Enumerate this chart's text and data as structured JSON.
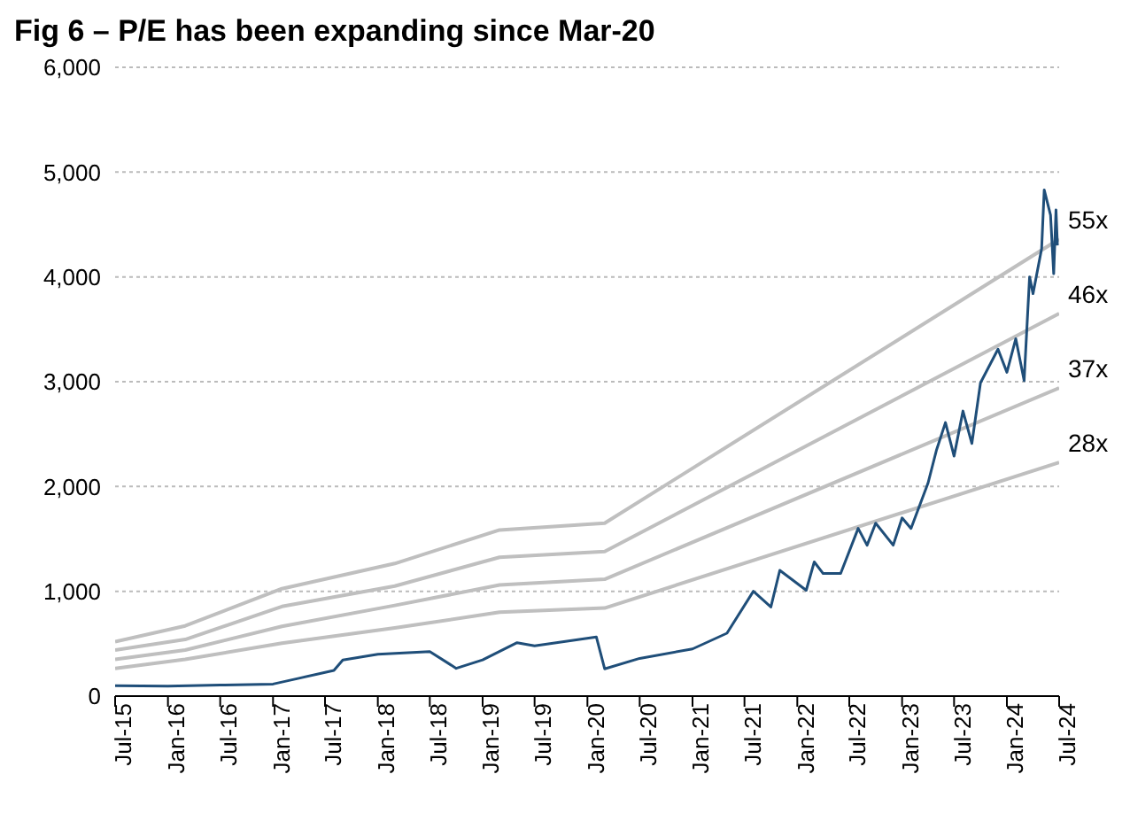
{
  "chart_data": {
    "type": "line",
    "title": "Fig 6 – P/E has been expanding since Mar-20",
    "xlim": [
      "2015-07",
      "2024-07"
    ],
    "xticks": [
      {
        "value": "2015-07",
        "label": "Jul-15"
      },
      {
        "value": "2016-01",
        "label": "Jan-16"
      },
      {
        "value": "2016-07",
        "label": "Jul-16"
      },
      {
        "value": "2017-01",
        "label": "Jan-17"
      },
      {
        "value": "2017-07",
        "label": "Jul-17"
      },
      {
        "value": "2018-01",
        "label": "Jan-18"
      },
      {
        "value": "2018-07",
        "label": "Jul-18"
      },
      {
        "value": "2019-01",
        "label": "Jan-19"
      },
      {
        "value": "2019-07",
        "label": "Jul-19"
      },
      {
        "value": "2020-01",
        "label": "Jan-20"
      },
      {
        "value": "2020-07",
        "label": "Jul-20"
      },
      {
        "value": "2021-01",
        "label": "Jan-21"
      },
      {
        "value": "2021-07",
        "label": "Jul-21"
      },
      {
        "value": "2022-01",
        "label": "Jan-22"
      },
      {
        "value": "2022-07",
        "label": "Jul-22"
      },
      {
        "value": "2023-01",
        "label": "Jan-23"
      },
      {
        "value": "2023-07",
        "label": "Jul-23"
      },
      {
        "value": "2024-01",
        "label": "Jan-24"
      },
      {
        "value": "2024-07",
        "label": "Jul-24"
      }
    ],
    "ylim": [
      0,
      6000
    ],
    "yticks": [
      0,
      {
        "value": 1000,
        "label": "1,000"
      },
      {
        "value": 2000,
        "label": "2,000"
      },
      {
        "value": 3000,
        "label": "3,000"
      },
      {
        "value": 4000,
        "label": "4,000"
      },
      {
        "value": 5000,
        "label": "5,000"
      },
      {
        "value": 6000,
        "label": "6,000"
      }
    ],
    "grid": "y",
    "legend": false,
    "marker": "none",
    "line_style": "solid",
    "series": [
      {
        "name": "28x",
        "color": "#bfbfbf",
        "x": [
          "2015-07",
          "2016-03",
          "2017-02",
          "2018-03",
          "2019-03",
          "2020-03",
          "2024-07"
        ],
        "values": [
          265,
          350,
          505,
          650,
          800,
          840,
          2230
        ]
      },
      {
        "name": "37x",
        "color": "#bfbfbf",
        "x": [
          "2015-07",
          "2016-03",
          "2017-02",
          "2018-03",
          "2019-03",
          "2020-03",
          "2024-07"
        ],
        "values": [
          350,
          440,
          665,
          865,
          1060,
          1115,
          2940
        ]
      },
      {
        "name": "46x",
        "color": "#bfbfbf",
        "x": [
          "2015-07",
          "2016-03",
          "2017-02",
          "2018-03",
          "2019-03",
          "2020-03",
          "2024-07"
        ],
        "values": [
          440,
          540,
          855,
          1050,
          1325,
          1380,
          3650
        ]
      },
      {
        "name": "55x",
        "color": "#bfbfbf",
        "x": [
          "2015-07",
          "2016-03",
          "2017-02",
          "2018-03",
          "2019-03",
          "2020-03",
          "2024-07"
        ],
        "values": [
          520,
          670,
          1025,
          1265,
          1585,
          1650,
          4360
        ]
      },
      {
        "color": "#1f4e79",
        "x": [
          "2015-07",
          "2016-01",
          "2016-07",
          "2017-01",
          "2017-04",
          "2017-08",
          "2017-09",
          "2018-01",
          "2018-07",
          "2018-10",
          "2019-01",
          "2019-05",
          "2019-07",
          "2020-02",
          "2020-03",
          "2020-07",
          "2021-01",
          "2021-05",
          "2021-08",
          "2021-10",
          "2021-11",
          "2022-02",
          "2022-03",
          "2022-04",
          "2022-06",
          "2022-08",
          "2022-09",
          "2022-10",
          "2022-12",
          "2023-01",
          "2023-02",
          "2023-04",
          "2023-05",
          "2023-06",
          "2023-07",
          "2023-08",
          "2023-09",
          "2023-10",
          "2023-12",
          "2024-01",
          "2024-02",
          "2024-03",
          "2024-03-20",
          "2024-04",
          "2024-05",
          "2024-05-10",
          "2024-06",
          "2024-06-12",
          "2024-06-20",
          "2024-06-25"
        ],
        "values": [
          100,
          95,
          105,
          115,
          170,
          245,
          345,
          400,
          425,
          265,
          345,
          510,
          480,
          565,
          260,
          360,
          450,
          600,
          1000,
          850,
          1200,
          1010,
          1280,
          1170,
          1170,
          1600,
          1440,
          1650,
          1440,
          1700,
          1600,
          2030,
          2350,
          2610,
          2290,
          2720,
          2410,
          2990,
          3310,
          3090,
          3410,
          3010,
          4000,
          3840,
          4270,
          4830,
          4590,
          4030,
          4640,
          4300
        ]
      }
    ]
  }
}
